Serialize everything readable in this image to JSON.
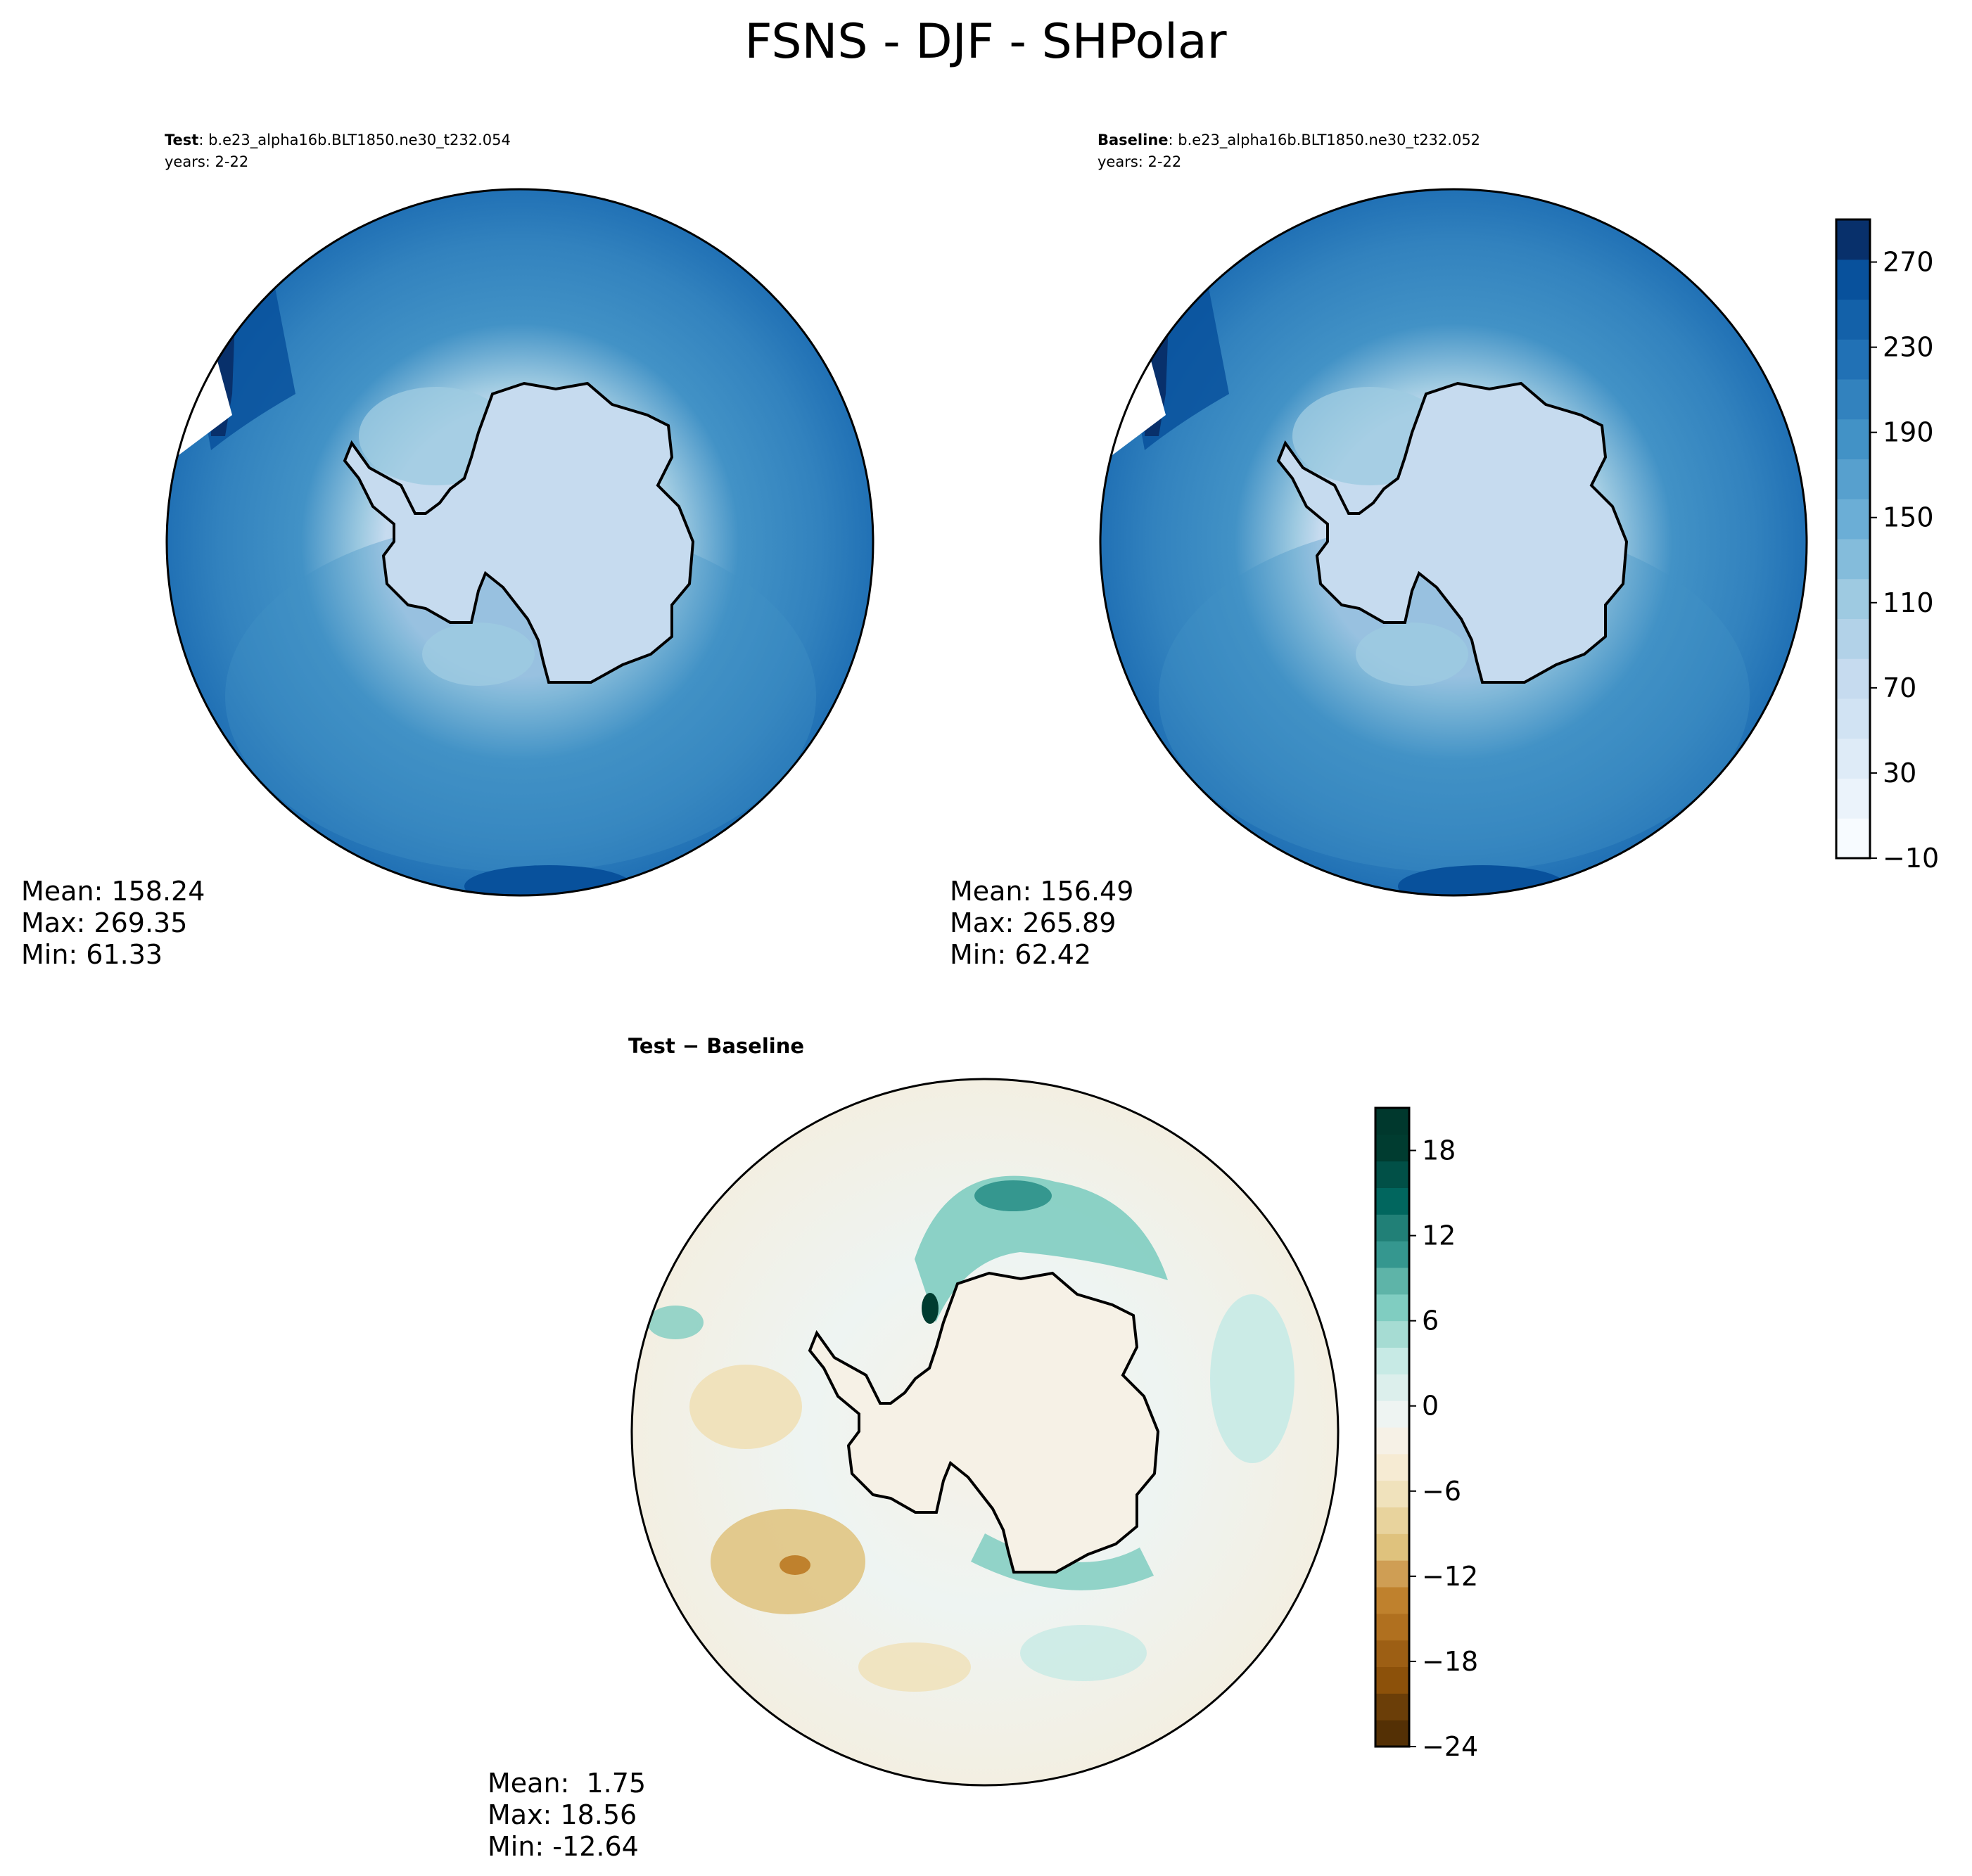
{
  "figure": {
    "title": "FSNS - DJF - SHPolar"
  },
  "chart_data": [
    {
      "type": "heatmap",
      "projection": "south-polar-stereographic",
      "title_bold": "Test",
      "title_rest": ": b.e23_alpha16b.BLT1850.ne30_t232.054",
      "subtitle": "years: 2-22",
      "stats": [
        "Mean: 158.24",
        "Max: 269.35",
        "Min: 61.33"
      ],
      "values": {
        "mean": 158.24,
        "max": 269.35,
        "min": 61.33
      },
      "colorbar": "main",
      "colormap": "Blues"
    },
    {
      "type": "heatmap",
      "projection": "south-polar-stereographic",
      "title_bold": "Baseline",
      "title_rest": ": b.e23_alpha16b.BLT1850.ne30_t232.052",
      "subtitle": "years: 2-22",
      "stats": [
        "Mean: 156.49",
        "Max: 265.89",
        "Min: 62.42"
      ],
      "values": {
        "mean": 156.49,
        "max": 265.89,
        "min": 62.42
      },
      "colorbar": "main",
      "colormap": "Blues"
    },
    {
      "type": "heatmap",
      "projection": "south-polar-stereographic",
      "title_bold": "Test − Baseline",
      "title_rest": "",
      "subtitle": "",
      "stats": [
        "Mean:  1.75",
        "Max: 18.56",
        "Min: -12.64"
      ],
      "values": {
        "mean": 1.75,
        "max": 18.56,
        "min": -12.64
      },
      "colorbar": "diff",
      "colormap": "BrBG"
    }
  ],
  "colorbars": {
    "main": {
      "range": [
        -10,
        290
      ],
      "step": 20,
      "tick_labels": [
        "−10",
        "30",
        "70",
        "110",
        "150",
        "190",
        "230",
        "270"
      ],
      "tick_values": [
        -10,
        30,
        70,
        110,
        150,
        190,
        230,
        270
      ],
      "colors": [
        "#f7fbff",
        "#ebf3fb",
        "#deebf7",
        "#d1e3f3",
        "#c6dbef",
        "#b2d2e8",
        "#9ecae1",
        "#84bcdb",
        "#6baed6",
        "#57a0ce",
        "#4292c6",
        "#3282be",
        "#2171b5",
        "#1361a9",
        "#08519c",
        "#08306b"
      ]
    },
    "diff": {
      "range": [
        -24,
        21
      ],
      "step": 1.5,
      "tick_labels": [
        "−24",
        "−18",
        "−12",
        "−6",
        "0",
        "6",
        "12",
        "18"
      ],
      "tick_values": [
        -24,
        -18,
        -12,
        -6,
        0,
        6,
        12,
        18
      ],
      "colors": [
        "#543005",
        "#6b3e08",
        "#8c510a",
        "#9d5f14",
        "#b0701f",
        "#bf812d",
        "#cf9e54",
        "#dfc27d",
        "#e8d39d",
        "#f0e2bc",
        "#f6ebd3",
        "#f6f1e6",
        "#eef4f2",
        "#dcefec",
        "#c7eae5",
        "#a6dcd3",
        "#80cdc1",
        "#5eb4a8",
        "#35978f",
        "#218077",
        "#01665e",
        "#015047",
        "#003c30",
        "#00382d"
      ]
    }
  }
}
